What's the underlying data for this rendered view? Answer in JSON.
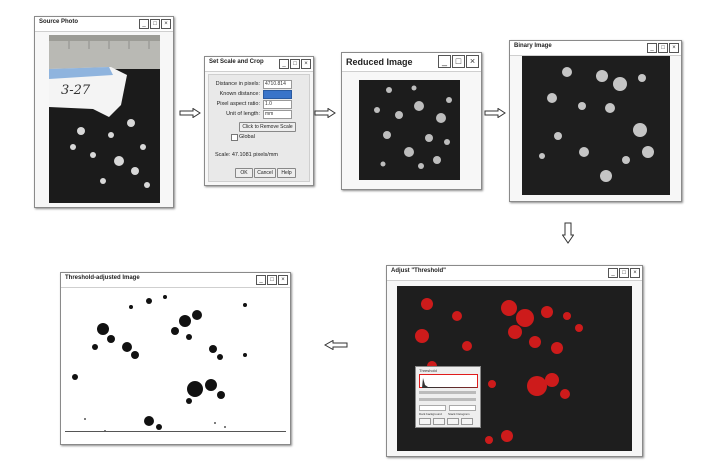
{
  "windows": {
    "source": {
      "title": "Source Photo",
      "label": "3-27"
    },
    "scale": {
      "title": "Set Scale and Crop",
      "rows": [
        {
          "label": "Distance in pixels:",
          "value": "4710.814"
        },
        {
          "label": "Known distance:",
          "value": ""
        },
        {
          "label": "Pixel aspect ratio:",
          "value": "1.0"
        },
        {
          "label": "Unit of length:",
          "value": "mm"
        }
      ],
      "remove_button": "Click to Remove Scale",
      "global_label": "Global",
      "scale_text": "Scale: 47.1081 pixels/mm",
      "buttons": {
        "ok": "OK",
        "cancel": "Cancel",
        "help": "Help"
      }
    },
    "reduced": {
      "title": "Reduced Image"
    },
    "binary": {
      "title": "Binary Image"
    },
    "threshold": {
      "title": "Adjust \"Threshold\"",
      "panel_title": "Threshold",
      "options": [
        "Dark background",
        "Stack histogram"
      ]
    },
    "adjusted": {
      "title": "Threshold-adjusted Image"
    }
  },
  "colors": {
    "dark_bg": "#1e1e1e",
    "threshold_red": "#e01b1b",
    "highlight": "#3a74c9"
  }
}
